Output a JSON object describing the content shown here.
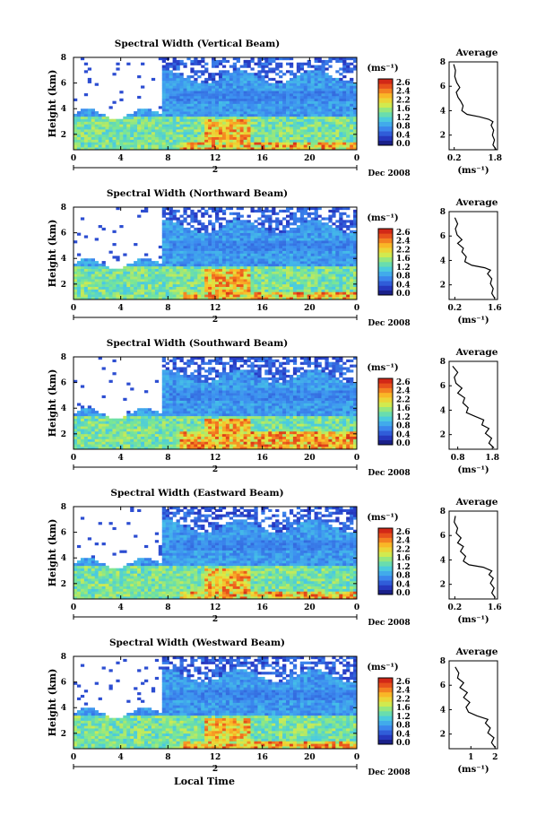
{
  "figure": {
    "date_label": "Dec 2008",
    "day_label": "2",
    "xlabel": "Local Time",
    "ylabel": "Height (km)",
    "avg_title": "Average",
    "unit_label": "(ms⁻¹)",
    "avg_xlabel": "(ms⁻¹)"
  },
  "chart_data": [
    {
      "type": "heatmap",
      "title": "Spectral Width (Vertical Beam)",
      "xlabel": "",
      "ylabel": "Height (km)",
      "x_ticks": [
        "0",
        "4",
        "8",
        "12",
        "16",
        "20",
        "0"
      ],
      "y_ticks": [
        "8",
        "6",
        "4",
        "2"
      ],
      "xlim": [
        0,
        24
      ],
      "ylim": [
        0.8,
        8
      ],
      "colorbar": {
        "label": "(ms⁻¹)",
        "ticks": [
          "2.6",
          "2.4",
          "2.2",
          "1.6",
          "1.2",
          "0.8",
          "0.4",
          "0.0"
        ],
        "range": [
          0,
          2.8
        ]
      },
      "profile": {
        "title": "Average",
        "xlabel": "(ms⁻¹)",
        "x_ticks": [
          "0.2",
          "1.8"
        ],
        "y_ticks": [
          "8",
          "6",
          "4",
          "2"
        ],
        "xlim": [
          0,
          1.9
        ],
        "points": [
          [
            1.85,
            0.8
          ],
          [
            1.72,
            1.2
          ],
          [
            1.78,
            1.6
          ],
          [
            1.7,
            2.0
          ],
          [
            1.75,
            2.4
          ],
          [
            1.65,
            2.8
          ],
          [
            1.72,
            3.1
          ],
          [
            1.55,
            3.3
          ],
          [
            1.2,
            3.5
          ],
          [
            0.7,
            3.7
          ],
          [
            0.5,
            4.0
          ],
          [
            0.55,
            4.4
          ],
          [
            0.45,
            4.8
          ],
          [
            0.35,
            5.1
          ],
          [
            0.28,
            5.5
          ],
          [
            0.42,
            5.9
          ],
          [
            0.3,
            6.3
          ],
          [
            0.22,
            6.8
          ],
          [
            0.25,
            7.3
          ],
          [
            0.18,
            7.8
          ]
        ]
      }
    },
    {
      "type": "heatmap",
      "title": "Spectral Width (Northward Beam)",
      "xlabel": "",
      "ylabel": "Height (km)",
      "x_ticks": [
        "0",
        "4",
        "8",
        "12",
        "16",
        "20",
        "0"
      ],
      "y_ticks": [
        "8",
        "6",
        "4",
        "2"
      ],
      "xlim": [
        0,
        24
      ],
      "ylim": [
        0.8,
        8
      ],
      "colorbar": {
        "label": "(ms⁻¹)",
        "ticks": [
          "2.6",
          "2.4",
          "2.2",
          "1.6",
          "1.2",
          "0.8",
          "0.4",
          "0.0"
        ],
        "range": [
          0,
          2.8
        ]
      },
      "profile": {
        "title": "Average",
        "xlabel": "(ms⁻¹)",
        "x_ticks": [
          "0.2",
          "1.6"
        ],
        "y_ticks": [
          "8",
          "6",
          "4",
          "2"
        ],
        "xlim": [
          0,
          1.7
        ],
        "points": [
          [
            1.6,
            0.9
          ],
          [
            1.5,
            1.3
          ],
          [
            1.55,
            1.7
          ],
          [
            1.45,
            2.1
          ],
          [
            1.5,
            2.5
          ],
          [
            1.35,
            2.9
          ],
          [
            1.45,
            3.2
          ],
          [
            1.25,
            3.4
          ],
          [
            0.8,
            3.6
          ],
          [
            0.55,
            3.9
          ],
          [
            0.6,
            4.3
          ],
          [
            0.45,
            4.7
          ],
          [
            0.5,
            5.0
          ],
          [
            0.3,
            5.4
          ],
          [
            0.45,
            5.7
          ],
          [
            0.28,
            6.1
          ],
          [
            0.22,
            6.6
          ],
          [
            0.3,
            7.0
          ],
          [
            0.2,
            7.5
          ]
        ]
      }
    },
    {
      "type": "heatmap",
      "title": "Spectral Width (Southward Beam)",
      "xlabel": "",
      "ylabel": "Height (km)",
      "x_ticks": [
        "0",
        "4",
        "8",
        "12",
        "16",
        "20",
        "0"
      ],
      "y_ticks": [
        "8",
        "6",
        "4",
        "2"
      ],
      "xlim": [
        0,
        24
      ],
      "ylim": [
        0.8,
        8
      ],
      "colorbar": {
        "label": "(ms⁻¹)",
        "ticks": [
          "2.6",
          "2.4",
          "2.2",
          "1.6",
          "1.2",
          "0.8",
          "0.4",
          "0.0"
        ],
        "range": [
          0,
          2.8
        ]
      },
      "profile": {
        "title": "Average",
        "xlabel": "(ms⁻¹)",
        "x_ticks": [
          "0.8",
          "1.8"
        ],
        "y_ticks": [
          "8",
          "6",
          "4",
          "2"
        ],
        "xlim": [
          0.55,
          1.95
        ],
        "points": [
          [
            1.85,
            0.9
          ],
          [
            1.7,
            1.3
          ],
          [
            1.78,
            1.7
          ],
          [
            1.6,
            2.1
          ],
          [
            1.7,
            2.5
          ],
          [
            1.5,
            2.8
          ],
          [
            1.55,
            3.2
          ],
          [
            1.3,
            3.5
          ],
          [
            1.05,
            3.8
          ],
          [
            1.1,
            4.2
          ],
          [
            0.95,
            4.6
          ],
          [
            1.0,
            5.0
          ],
          [
            0.8,
            5.4
          ],
          [
            0.92,
            5.8
          ],
          [
            0.75,
            6.2
          ],
          [
            0.7,
            6.7
          ],
          [
            0.8,
            7.1
          ],
          [
            0.65,
            7.6
          ]
        ]
      }
    },
    {
      "type": "heatmap",
      "title": "Spectral Width (Eastward Beam)",
      "xlabel": "",
      "ylabel": "Height (km)",
      "x_ticks": [
        "0",
        "4",
        "8",
        "12",
        "16",
        "20",
        "0"
      ],
      "y_ticks": [
        "8",
        "6",
        "4",
        "2"
      ],
      "xlim": [
        0,
        24
      ],
      "ylim": [
        0.8,
        8
      ],
      "colorbar": {
        "label": "(ms⁻¹)",
        "ticks": [
          "2.6",
          "2.4",
          "2.2",
          "1.6",
          "1.2",
          "0.8",
          "0.4",
          "0.0"
        ],
        "range": [
          0,
          2.8
        ]
      },
      "profile": {
        "title": "Average",
        "xlabel": "(ms⁻¹)",
        "x_ticks": [
          "0.2",
          "1.6"
        ],
        "y_ticks": [
          "8",
          "6",
          "4",
          "2"
        ],
        "xlim": [
          0,
          1.7
        ],
        "points": [
          [
            1.62,
            0.9
          ],
          [
            1.5,
            1.3
          ],
          [
            1.58,
            1.7
          ],
          [
            1.45,
            2.1
          ],
          [
            1.55,
            2.5
          ],
          [
            1.4,
            2.8
          ],
          [
            1.5,
            3.1
          ],
          [
            1.2,
            3.4
          ],
          [
            0.7,
            3.6
          ],
          [
            0.5,
            3.9
          ],
          [
            0.58,
            4.3
          ],
          [
            0.4,
            4.7
          ],
          [
            0.5,
            5.1
          ],
          [
            0.3,
            5.4
          ],
          [
            0.42,
            5.8
          ],
          [
            0.25,
            6.2
          ],
          [
            0.3,
            6.6
          ],
          [
            0.18,
            7.1
          ],
          [
            0.22,
            7.6
          ]
        ]
      }
    },
    {
      "type": "heatmap",
      "title": "Spectral Width (Westward Beam)",
      "xlabel": "Local Time",
      "ylabel": "Height (km)",
      "x_ticks": [
        "0",
        "4",
        "8",
        "12",
        "16",
        "20",
        "0"
      ],
      "y_ticks": [
        "8",
        "6",
        "4",
        "2"
      ],
      "xlim": [
        0,
        24
      ],
      "ylim": [
        0.8,
        8
      ],
      "colorbar": {
        "label": "(ms⁻¹)",
        "ticks": [
          "2.6",
          "2.4",
          "2.2",
          "1.6",
          "1.2",
          "0.8",
          "0.4",
          "0.0"
        ],
        "range": [
          0,
          2.8
        ]
      },
      "profile": {
        "title": "Average",
        "xlabel": "(ms⁻¹)",
        "x_ticks": [
          "1",
          "2"
        ],
        "y_ticks": [
          "8",
          "6",
          "4",
          "2"
        ],
        "xlim": [
          0.1,
          2.1
        ],
        "points": [
          [
            2.0,
            0.9
          ],
          [
            1.85,
            1.3
          ],
          [
            1.95,
            1.7
          ],
          [
            1.7,
            2.1
          ],
          [
            1.8,
            2.5
          ],
          [
            1.6,
            2.9
          ],
          [
            1.7,
            3.2
          ],
          [
            1.25,
            3.5
          ],
          [
            0.9,
            3.8
          ],
          [
            0.8,
            4.2
          ],
          [
            0.95,
            4.6
          ],
          [
            0.7,
            5.0
          ],
          [
            0.85,
            5.4
          ],
          [
            0.55,
            5.8
          ],
          [
            0.7,
            6.2
          ],
          [
            0.45,
            6.6
          ],
          [
            0.5,
            7.0
          ],
          [
            0.35,
            7.5
          ]
        ]
      }
    }
  ]
}
